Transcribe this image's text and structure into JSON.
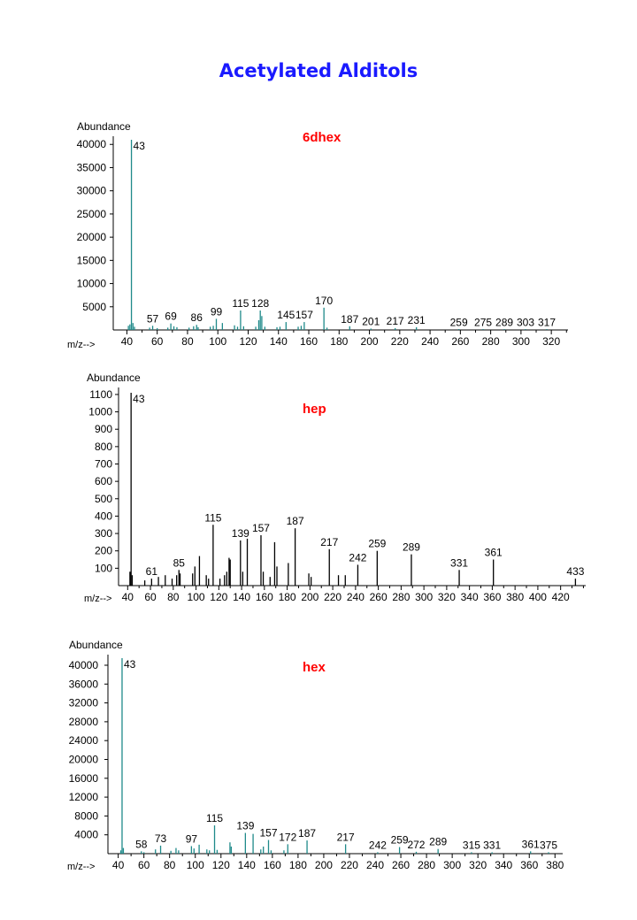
{
  "page_title": "Acetylated Alditols",
  "chart_data": [
    {
      "type": "bar",
      "title": "6dhex",
      "ylabel": "Abundance",
      "xlabel": "m/z-->",
      "color": "#1f8a8a",
      "title_color": "#ff0000",
      "xlim": [
        31,
        331
      ],
      "ylim": [
        0,
        41000
      ],
      "xticks": [
        40,
        60,
        80,
        100,
        120,
        140,
        160,
        180,
        200,
        220,
        240,
        260,
        280,
        300,
        320
      ],
      "yticks": [
        5000,
        10000,
        15000,
        20000,
        25000,
        30000,
        35000,
        40000
      ],
      "peaks": [
        {
          "x": 41,
          "y": 900
        },
        {
          "x": 42,
          "y": 1200
        },
        {
          "x": 43,
          "y": 41000,
          "label": "43"
        },
        {
          "x": 44,
          "y": 1500
        },
        {
          "x": 45,
          "y": 700
        },
        {
          "x": 55,
          "y": 500
        },
        {
          "x": 57,
          "y": 900,
          "label": "57"
        },
        {
          "x": 60,
          "y": 400
        },
        {
          "x": 67,
          "y": 500
        },
        {
          "x": 69,
          "y": 1400,
          "label": "69"
        },
        {
          "x": 71,
          "y": 800
        },
        {
          "x": 73,
          "y": 600
        },
        {
          "x": 81,
          "y": 500
        },
        {
          "x": 84,
          "y": 800
        },
        {
          "x": 86,
          "y": 1100,
          "label": "86"
        },
        {
          "x": 87,
          "y": 600
        },
        {
          "x": 95,
          "y": 700
        },
        {
          "x": 97,
          "y": 900
        },
        {
          "x": 99,
          "y": 2400,
          "label": "99"
        },
        {
          "x": 103,
          "y": 1500
        },
        {
          "x": 111,
          "y": 1000
        },
        {
          "x": 113,
          "y": 700
        },
        {
          "x": 115,
          "y": 4200,
          "label": "115"
        },
        {
          "x": 117,
          "y": 800
        },
        {
          "x": 125,
          "y": 700
        },
        {
          "x": 127,
          "y": 2100
        },
        {
          "x": 128,
          "y": 4200,
          "label": "128"
        },
        {
          "x": 129,
          "y": 3000
        },
        {
          "x": 131,
          "y": 700
        },
        {
          "x": 139,
          "y": 600
        },
        {
          "x": 141,
          "y": 700
        },
        {
          "x": 145,
          "y": 1700,
          "label": "145"
        },
        {
          "x": 153,
          "y": 700
        },
        {
          "x": 155,
          "y": 900
        },
        {
          "x": 157,
          "y": 1700,
          "label": "157"
        },
        {
          "x": 170,
          "y": 4800,
          "label": "170"
        },
        {
          "x": 172,
          "y": 500
        },
        {
          "x": 187,
          "y": 800,
          "label": "187"
        },
        {
          "x": 201,
          "y": 300,
          "label": "201"
        },
        {
          "x": 217,
          "y": 400,
          "label": "217"
        },
        {
          "x": 231,
          "y": 600,
          "label": "231"
        },
        {
          "x": 259,
          "y": 100,
          "label": "259"
        },
        {
          "x": 275,
          "y": 100,
          "label": "275"
        },
        {
          "x": 289,
          "y": 100,
          "label": "289"
        },
        {
          "x": 303,
          "y": 100,
          "label": "303"
        },
        {
          "x": 317,
          "y": 100,
          "label": "317"
        }
      ]
    },
    {
      "type": "bar",
      "title": "hep",
      "ylabel": "Abundance",
      "xlabel": "m/z-->",
      "color": "#000000",
      "title_color": "#ff0000",
      "xlim": [
        32,
        442
      ],
      "ylim": [
        0,
        1120
      ],
      "xticks": [
        40,
        60,
        80,
        100,
        120,
        140,
        160,
        180,
        200,
        220,
        240,
        260,
        280,
        300,
        320,
        340,
        360,
        380,
        400,
        420
      ],
      "yticks": [
        100,
        200,
        300,
        400,
        500,
        600,
        700,
        800,
        900,
        1000,
        1100
      ],
      "peaks": [
        {
          "x": 42,
          "y": 80
        },
        {
          "x": 43,
          "y": 1110,
          "label": "43"
        },
        {
          "x": 44,
          "y": 60
        },
        {
          "x": 55,
          "y": 30
        },
        {
          "x": 61,
          "y": 40,
          "label": "61"
        },
        {
          "x": 67,
          "y": 50
        },
        {
          "x": 73,
          "y": 60
        },
        {
          "x": 79,
          "y": 40
        },
        {
          "x": 83,
          "y": 60
        },
        {
          "x": 85,
          "y": 90,
          "label": "85"
        },
        {
          "x": 86,
          "y": 70
        },
        {
          "x": 97,
          "y": 70
        },
        {
          "x": 99,
          "y": 110
        },
        {
          "x": 103,
          "y": 170
        },
        {
          "x": 109,
          "y": 60
        },
        {
          "x": 111,
          "y": 40
        },
        {
          "x": 115,
          "y": 350,
          "label": "115"
        },
        {
          "x": 121,
          "y": 40
        },
        {
          "x": 125,
          "y": 60
        },
        {
          "x": 127,
          "y": 80
        },
        {
          "x": 129,
          "y": 160
        },
        {
          "x": 130,
          "y": 150
        },
        {
          "x": 139,
          "y": 260,
          "label": "139"
        },
        {
          "x": 141,
          "y": 80
        },
        {
          "x": 145,
          "y": 270
        },
        {
          "x": 157,
          "y": 290,
          "label": "157"
        },
        {
          "x": 159,
          "y": 80
        },
        {
          "x": 165,
          "y": 50
        },
        {
          "x": 169,
          "y": 250
        },
        {
          "x": 171,
          "y": 110
        },
        {
          "x": 181,
          "y": 130
        },
        {
          "x": 187,
          "y": 330,
          "label": "187"
        },
        {
          "x": 199,
          "y": 70
        },
        {
          "x": 201,
          "y": 50
        },
        {
          "x": 217,
          "y": 210,
          "label": "217"
        },
        {
          "x": 225,
          "y": 60
        },
        {
          "x": 231,
          "y": 60
        },
        {
          "x": 242,
          "y": 120,
          "label": "242"
        },
        {
          "x": 259,
          "y": 200,
          "label": "259"
        },
        {
          "x": 289,
          "y": 180,
          "label": "289"
        },
        {
          "x": 331,
          "y": 90,
          "label": "331"
        },
        {
          "x": 361,
          "y": 150,
          "label": "361"
        },
        {
          "x": 433,
          "y": 40,
          "label": "433"
        }
      ]
    },
    {
      "type": "bar",
      "title": "hex",
      "ylabel": "Abundance",
      "xlabel": "m/z-->",
      "color": "#1f8a8a",
      "title_color": "#ff0000",
      "xlim": [
        32,
        386
      ],
      "ylim": [
        0,
        41500
      ],
      "xticks": [
        40,
        60,
        80,
        100,
        120,
        140,
        160,
        180,
        200,
        220,
        240,
        260,
        280,
        300,
        320,
        340,
        360,
        380
      ],
      "yticks": [
        4000,
        8000,
        12000,
        16000,
        20000,
        24000,
        28000,
        32000,
        36000,
        40000
      ],
      "peaks": [
        {
          "x": 42,
          "y": 700
        },
        {
          "x": 43,
          "y": 41500,
          "label": "43"
        },
        {
          "x": 44,
          "y": 1200
        },
        {
          "x": 58,
          "y": 500,
          "label": "58"
        },
        {
          "x": 60,
          "y": 300
        },
        {
          "x": 69,
          "y": 900
        },
        {
          "x": 73,
          "y": 1700,
          "label": "73"
        },
        {
          "x": 81,
          "y": 600
        },
        {
          "x": 85,
          "y": 1200
        },
        {
          "x": 87,
          "y": 700
        },
        {
          "x": 97,
          "y": 1600,
          "label": "97"
        },
        {
          "x": 99,
          "y": 1100
        },
        {
          "x": 103,
          "y": 1900
        },
        {
          "x": 109,
          "y": 900
        },
        {
          "x": 111,
          "y": 700
        },
        {
          "x": 115,
          "y": 6000,
          "label": "115"
        },
        {
          "x": 117,
          "y": 800
        },
        {
          "x": 127,
          "y": 2400
        },
        {
          "x": 128,
          "y": 1500
        },
        {
          "x": 139,
          "y": 4400,
          "label": "139"
        },
        {
          "x": 145,
          "y": 4200
        },
        {
          "x": 151,
          "y": 900
        },
        {
          "x": 153,
          "y": 1500
        },
        {
          "x": 157,
          "y": 2900,
          "label": "157"
        },
        {
          "x": 159,
          "y": 700
        },
        {
          "x": 169,
          "y": 700
        },
        {
          "x": 172,
          "y": 2000,
          "label": "172"
        },
        {
          "x": 187,
          "y": 2800,
          "label": "187"
        },
        {
          "x": 217,
          "y": 2000,
          "label": "217"
        },
        {
          "x": 242,
          "y": 300,
          "label": "242"
        },
        {
          "x": 259,
          "y": 1400,
          "label": "259"
        },
        {
          "x": 272,
          "y": 400,
          "label": "272"
        },
        {
          "x": 289,
          "y": 1000,
          "label": "289"
        },
        {
          "x": 315,
          "y": 300,
          "label": "315"
        },
        {
          "x": 331,
          "y": 300,
          "label": "331"
        },
        {
          "x": 361,
          "y": 500,
          "label": "361"
        },
        {
          "x": 375,
          "y": 300,
          "label": "375"
        }
      ]
    }
  ]
}
